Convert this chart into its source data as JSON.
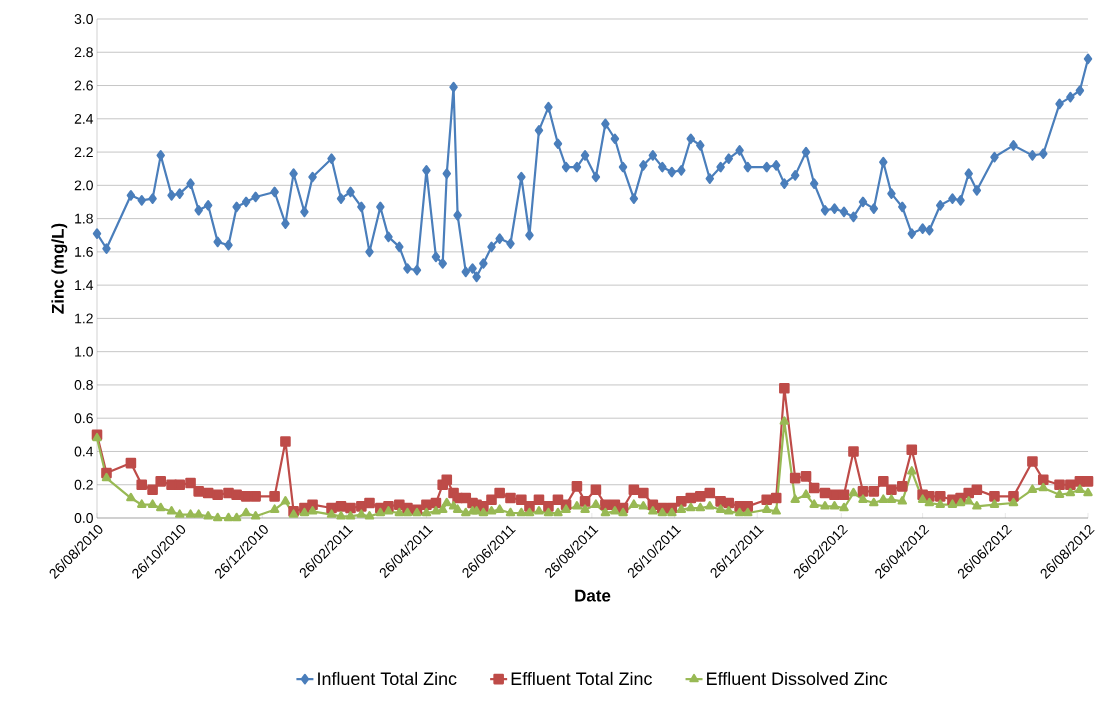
{
  "chart_data": {
    "type": "line",
    "xlabel": "Date",
    "ylabel": "Zinc (mg/L)",
    "x": [
      "2010-08-26",
      "2010-09-02",
      "2010-09-20",
      "2010-09-28",
      "2010-10-06",
      "2010-10-12",
      "2010-10-20",
      "2010-10-26",
      "2010-11-03",
      "2010-11-09",
      "2010-11-16",
      "2010-11-23",
      "2010-12-01",
      "2010-12-07",
      "2010-12-14",
      "2010-12-21",
      "2011-01-04",
      "2011-01-12",
      "2011-01-18",
      "2011-01-26",
      "2011-02-01",
      "2011-02-15",
      "2011-02-22",
      "2011-03-01",
      "2011-03-09",
      "2011-03-15",
      "2011-03-23",
      "2011-03-29",
      "2011-04-06",
      "2011-04-12",
      "2011-04-19",
      "2011-04-26",
      "2011-05-03",
      "2011-05-08",
      "2011-05-11",
      "2011-05-16",
      "2011-05-19",
      "2011-05-25",
      "2011-05-30",
      "2011-06-02",
      "2011-06-07",
      "2011-06-13",
      "2011-06-19",
      "2011-06-27",
      "2011-07-05",
      "2011-07-11",
      "2011-07-18",
      "2011-07-25",
      "2011-08-01",
      "2011-08-07",
      "2011-08-15",
      "2011-08-21",
      "2011-08-29",
      "2011-09-05",
      "2011-09-12",
      "2011-09-18",
      "2011-09-26",
      "2011-10-03",
      "2011-10-10",
      "2011-10-17",
      "2011-10-24",
      "2011-10-31",
      "2011-11-07",
      "2011-11-14",
      "2011-11-21",
      "2011-11-29",
      "2011-12-05",
      "2011-12-13",
      "2011-12-19",
      "2012-01-02",
      "2012-01-09",
      "2012-01-15",
      "2012-01-23",
      "2012-01-31",
      "2012-02-06",
      "2012-02-14",
      "2012-02-21",
      "2012-02-28",
      "2012-03-06",
      "2012-03-13",
      "2012-03-21",
      "2012-03-28",
      "2012-04-03",
      "2012-04-11",
      "2012-04-18",
      "2012-04-26",
      "2012-05-01",
      "2012-05-09",
      "2012-05-18",
      "2012-05-24",
      "2012-05-30",
      "2012-06-05",
      "2012-06-18",
      "2012-07-02",
      "2012-07-16",
      "2012-07-24",
      "2012-08-05",
      "2012-08-13",
      "2012-08-20",
      "2012-08-26"
    ],
    "series": [
      {
        "name": "Influent Total Zinc",
        "color": "#4a7ebb",
        "marker": "diamond",
        "values": [
          1.71,
          1.62,
          1.94,
          1.91,
          1.92,
          2.18,
          1.94,
          1.95,
          2.01,
          1.85,
          1.88,
          1.66,
          1.64,
          1.87,
          1.9,
          1.93,
          1.96,
          1.77,
          2.07,
          1.84,
          2.05,
          2.16,
          1.92,
          1.96,
          1.87,
          1.6,
          1.87,
          1.69,
          1.63,
          1.5,
          1.49,
          2.09,
          1.57,
          1.53,
          2.07,
          2.59,
          1.82,
          1.48,
          1.5,
          1.45,
          1.53,
          1.63,
          1.68,
          1.65,
          2.05,
          1.7,
          2.33,
          2.47,
          2.25,
          2.11,
          2.11,
          2.18,
          2.05,
          2.37,
          2.28,
          2.11,
          1.92,
          2.12,
          2.18,
          2.11,
          2.08,
          2.09,
          2.28,
          2.24,
          2.04,
          2.11,
          2.16,
          2.21,
          2.11,
          2.11,
          2.12,
          2.01,
          2.06,
          2.2,
          2.01,
          1.85,
          1.86,
          1.84,
          1.81,
          1.9,
          1.86,
          2.14,
          1.95,
          1.87,
          1.71,
          1.74,
          1.73,
          1.88,
          1.92,
          1.91,
          2.07,
          1.97,
          2.17,
          2.24,
          2.18,
          2.19,
          2.49,
          2.53,
          2.57,
          2.76
        ]
      },
      {
        "name": "Effluent Total Zinc",
        "color": "#be4b48",
        "marker": "square",
        "values": [
          0.5,
          0.27,
          0.33,
          0.2,
          0.17,
          0.22,
          0.2,
          0.2,
          0.21,
          0.16,
          0.15,
          0.14,
          0.15,
          0.14,
          0.13,
          0.13,
          0.13,
          0.46,
          0.04,
          0.06,
          0.08,
          0.06,
          0.07,
          0.06,
          0.07,
          0.09,
          0.06,
          0.07,
          0.08,
          0.06,
          0.05,
          0.08,
          0.09,
          0.2,
          0.23,
          0.15,
          0.12,
          0.12,
          0.09,
          0.08,
          0.07,
          0.11,
          0.15,
          0.12,
          0.11,
          0.07,
          0.11,
          0.07,
          0.11,
          0.08,
          0.19,
          0.1,
          0.17,
          0.08,
          0.08,
          0.06,
          0.17,
          0.15,
          0.08,
          0.06,
          0.06,
          0.1,
          0.12,
          0.13,
          0.15,
          0.1,
          0.09,
          0.07,
          0.07,
          0.11,
          0.12,
          0.78,
          0.24,
          0.25,
          0.18,
          0.15,
          0.14,
          0.14,
          0.4,
          0.16,
          0.16,
          0.22,
          0.17,
          0.19,
          0.41,
          0.14,
          0.13,
          0.13,
          0.11,
          0.12,
          0.15,
          0.17,
          0.13,
          0.13,
          0.34,
          0.23,
          0.2,
          0.2,
          0.22,
          0.22
        ]
      },
      {
        "name": "Effluent Dissolved Zinc",
        "color": "#98b954",
        "marker": "triangle",
        "values": [
          0.48,
          0.24,
          0.12,
          0.08,
          0.08,
          0.06,
          0.04,
          0.02,
          0.02,
          0.02,
          0.01,
          0.0,
          0.0,
          0.0,
          0.03,
          0.01,
          0.05,
          0.1,
          0.02,
          0.03,
          0.04,
          0.02,
          0.01,
          0.01,
          0.02,
          0.01,
          0.03,
          0.04,
          0.03,
          0.03,
          0.03,
          0.03,
          0.04,
          0.05,
          0.09,
          0.07,
          0.05,
          0.03,
          0.04,
          0.04,
          0.03,
          0.04,
          0.05,
          0.03,
          0.03,
          0.03,
          0.04,
          0.03,
          0.03,
          0.05,
          0.07,
          0.05,
          0.08,
          0.03,
          0.04,
          0.03,
          0.08,
          0.07,
          0.04,
          0.03,
          0.03,
          0.05,
          0.06,
          0.06,
          0.07,
          0.05,
          0.04,
          0.03,
          0.03,
          0.05,
          0.04,
          0.58,
          0.11,
          0.14,
          0.08,
          0.07,
          0.07,
          0.06,
          0.15,
          0.11,
          0.09,
          0.11,
          0.11,
          0.1,
          0.28,
          0.11,
          0.09,
          0.08,
          0.08,
          0.09,
          0.1,
          0.07,
          0.08,
          0.09,
          0.17,
          0.18,
          0.14,
          0.15,
          0.17,
          0.15
        ]
      }
    ],
    "xlim": [
      "2010-08-26",
      "2012-08-26"
    ],
    "xticks": [
      {
        "value": "2010-08-26",
        "label": "26/08/2010"
      },
      {
        "value": "2010-10-26",
        "label": "26/10/2010"
      },
      {
        "value": "2010-12-26",
        "label": "26/12/2010"
      },
      {
        "value": "2011-02-26",
        "label": "26/02/2011"
      },
      {
        "value": "2011-04-26",
        "label": "26/04/2011"
      },
      {
        "value": "2011-06-26",
        "label": "26/06/2011"
      },
      {
        "value": "2011-08-26",
        "label": "26/08/2011"
      },
      {
        "value": "2011-10-26",
        "label": "26/10/2011"
      },
      {
        "value": "2011-12-26",
        "label": "26/12/2011"
      },
      {
        "value": "2012-02-26",
        "label": "26/02/2012"
      },
      {
        "value": "2012-04-26",
        "label": "26/04/2012"
      },
      {
        "value": "2012-06-26",
        "label": "26/06/2012"
      },
      {
        "value": "2012-08-26",
        "label": "26/08/2012"
      }
    ],
    "ylim": [
      0,
      3.0
    ],
    "yticks": [
      {
        "value": 0,
        "label": "0.0"
      },
      {
        "value": 0.2,
        "label": "0.2"
      },
      {
        "value": 0.4,
        "label": "0.4"
      },
      {
        "value": 0.6,
        "label": "0.6"
      },
      {
        "value": 0.8,
        "label": "0.8"
      },
      {
        "value": 1.0,
        "label": "1.0"
      },
      {
        "value": 1.2,
        "label": "1.2"
      },
      {
        "value": 1.4,
        "label": "1.4"
      },
      {
        "value": 1.6,
        "label": "1.6"
      },
      {
        "value": 1.8,
        "label": "1.8"
      },
      {
        "value": 2.0,
        "label": "2.0"
      },
      {
        "value": 2.2,
        "label": "2.2"
      },
      {
        "value": 2.4,
        "label": "2.4"
      },
      {
        "value": 2.6,
        "label": "2.6"
      },
      {
        "value": 2.8,
        "label": "2.8"
      },
      {
        "value": 3.0,
        "label": "3.0"
      }
    ],
    "grid": "y",
    "legend": "bottom"
  }
}
